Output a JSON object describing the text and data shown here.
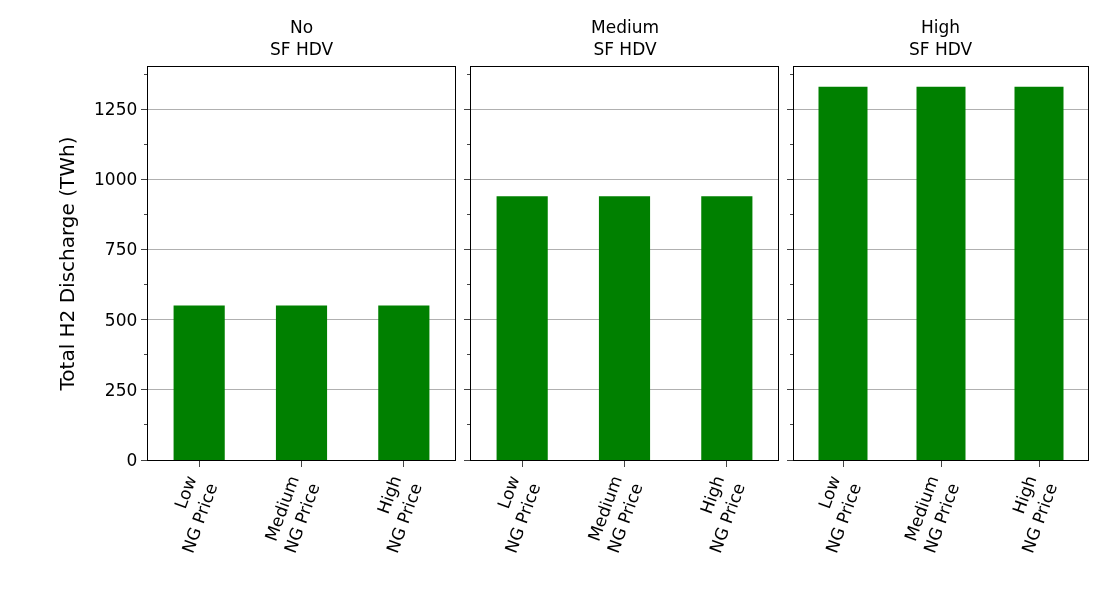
{
  "chart_data": [
    {
      "type": "bar",
      "title": "No\nSF HDV",
      "ylabel": "Total H2 Discharge (TWh)",
      "categories": [
        "Low\nNG Price",
        "Medium\nNG Price",
        "High\nNG Price"
      ],
      "values": [
        550,
        550,
        550
      ],
      "color": "#008000",
      "ylim": [
        0,
        1400
      ],
      "yticks": [
        0,
        {
          "value": 125,
          "label": null
        },
        250,
        {
          "value": 375,
          "label": null
        },
        500,
        {
          "value": 625,
          "label": null
        },
        750,
        {
          "value": 875,
          "label": null
        },
        1000,
        {
          "value": 1125,
          "label": null
        },
        1250,
        {
          "value": 1375,
          "label": null
        }
      ],
      "grid": "y"
    },
    {
      "type": "bar",
      "title": "Medium\nSF HDV",
      "categories": [
        "Low\nNG Price",
        "Medium\nNG Price",
        "High\nNG Price"
      ],
      "values": [
        940,
        940,
        940
      ],
      "color": "#008000",
      "ylim": [
        0,
        1400
      ],
      "yticks": [
        0,
        {
          "value": 125,
          "label": null
        },
        250,
        {
          "value": 375,
          "label": null
        },
        500,
        {
          "value": 625,
          "label": null
        },
        750,
        {
          "value": 875,
          "label": null
        },
        1000,
        {
          "value": 1125,
          "label": null
        },
        1250,
        {
          "value": 1375,
          "label": null
        }
      ],
      "grid": "y",
      "tick_labels": "x"
    },
    {
      "type": "bar",
      "title": "High\nSF HDV",
      "categories": [
        "Low\nNG Price",
        "Medium\nNG Price",
        "High\nNG Price"
      ],
      "values": [
        1330,
        1330,
        1330
      ],
      "color": "#008000",
      "ylim": [
        0,
        1400
      ],
      "yticks": [
        0,
        {
          "value": 125,
          "label": null
        },
        250,
        {
          "value": 375,
          "label": null
        },
        500,
        {
          "value": 625,
          "label": null
        },
        750,
        {
          "value": 875,
          "label": null
        },
        1000,
        {
          "value": 1125,
          "label": null
        },
        1250,
        {
          "value": 1375,
          "label": null
        }
      ],
      "grid": "y",
      "tick_labels": "x"
    }
  ]
}
